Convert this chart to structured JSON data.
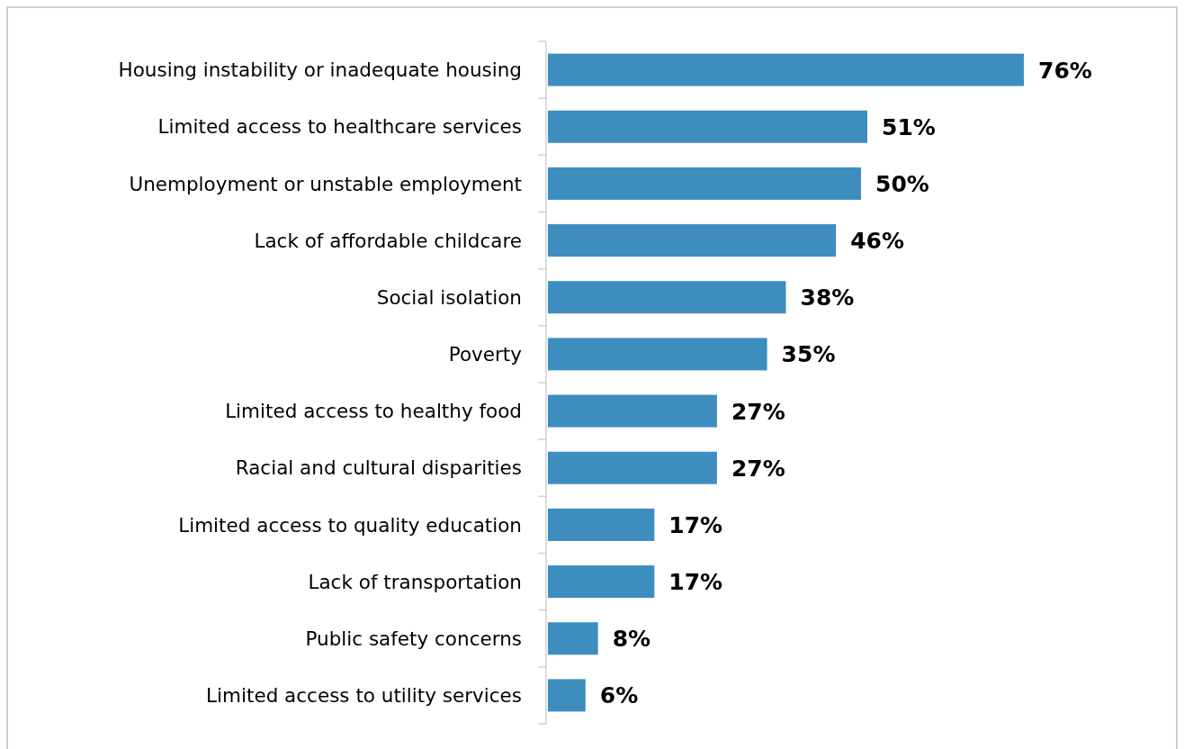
{
  "chart_data": {
    "type": "bar",
    "orientation": "horizontal",
    "categories": [
      "Housing instability or inadequate housing",
      "Limited access to healthcare services",
      "Unemployment or unstable employment",
      "Lack of affordable childcare",
      "Social isolation",
      "Poverty",
      "Limited access to healthy food",
      "Racial and cultural disparities",
      "Limited access to quality education",
      "Lack of transportation",
      "Public safety concerns",
      "Limited access to utility services"
    ],
    "values": [
      76,
      51,
      50,
      46,
      38,
      35,
      27,
      27,
      17,
      17,
      8,
      6
    ],
    "value_labels": [
      "76%",
      "51%",
      "50%",
      "46%",
      "38%",
      "35%",
      "27%",
      "27%",
      "17%",
      "17%",
      "8%",
      "6%"
    ],
    "color": "#3d8dbf",
    "grid": false
  }
}
